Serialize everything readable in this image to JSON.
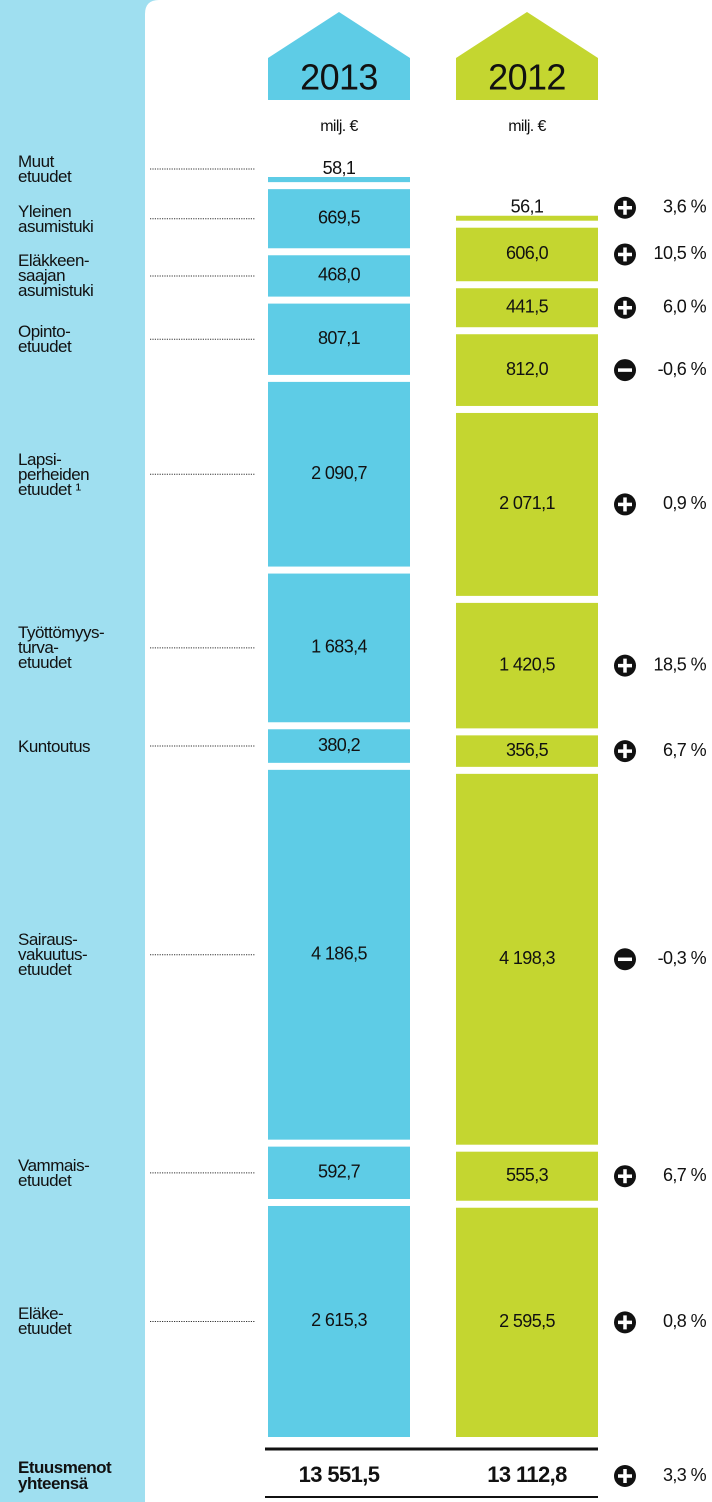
{
  "chart_data": {
    "type": "stacked_bar",
    "unit": "milj. €",
    "categories": [
      "Muut\netuudet",
      "Yleinen\nasumistuki",
      "Eläkkeen-\nsaajan\nasumistuki",
      "Opinto-\netuudet",
      "Lapsi-\nperheiden\netuudet ¹",
      "Työttömyys-\nturva-\netuudet",
      "Kuntoutus",
      "Sairaus-\nvakuutus-\netuudet",
      "Vammais-\netuudet",
      "Eläke-\netuudet"
    ],
    "series": [
      {
        "name": "2013",
        "color": "#5ecce6",
        "values": [
          58.1,
          669.5,
          468.0,
          807.1,
          2090.7,
          1683.4,
          380.2,
          4186.5,
          592.7,
          2615.3
        ],
        "value_labels": [
          "58,1",
          "669,5",
          "468,0",
          "807,1",
          "2 090,7",
          "1 683,4",
          "380,2",
          "4 186,5",
          "592,7",
          "2 615,3"
        ]
      },
      {
        "name": "2012",
        "color": "#c4d630",
        "values": [
          56.1,
          606.0,
          441.5,
          812.0,
          2071.1,
          1420.5,
          356.5,
          4198.3,
          555.3,
          2595.5
        ],
        "value_labels": [
          "56,1",
          "606,0",
          "441,5",
          "812,0",
          "2 071,1",
          "1 420,5",
          "356,5",
          "4 198,3",
          "555,3",
          "2 595,5"
        ]
      }
    ],
    "changes": {
      "values": [
        3.6,
        10.5,
        6.0,
        -0.6,
        0.9,
        18.5,
        6.7,
        -0.3,
        6.7,
        0.8
      ],
      "value_labels": [
        "3,6 %",
        "10,5 %",
        "6,0 %",
        "-0,6 %",
        "0,9 %",
        "18,5 %",
        "6,7 %",
        "-0,3 %",
        "6,7 %",
        "0,8 %"
      ]
    },
    "total": {
      "label": "Etuusmenot\nyhteensä",
      "values": [
        13551.5,
        13112.8
      ],
      "value_labels": [
        "13 551,5",
        "13 112,8"
      ],
      "change": 3.3,
      "change_label": "3,3 %"
    }
  }
}
